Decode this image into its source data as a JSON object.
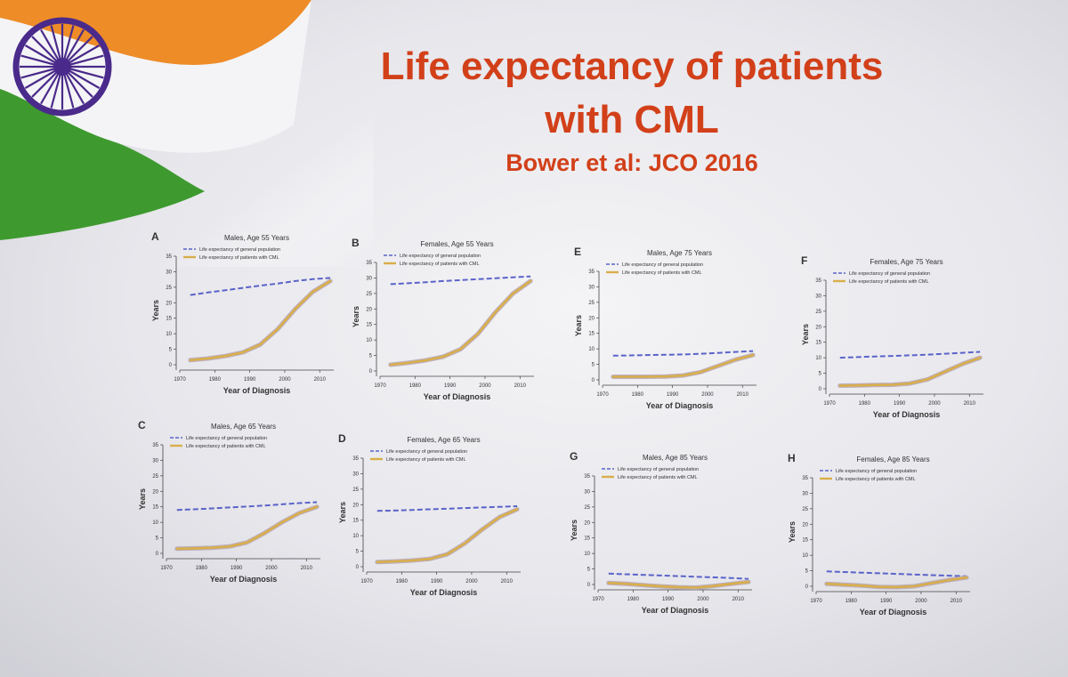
{
  "slide": {
    "title_line1": "Life expectancy of patients",
    "title_line2": "with CML",
    "subtitle": "Bower et al: JCO 2016"
  },
  "colors": {
    "title": "#d2401a",
    "general_population": "#5a63c8",
    "cml_patients": "#d9ae4a",
    "cml_band": "#b8aab8"
  },
  "chart_data": [
    {
      "type": "line",
      "panel": "A",
      "title": "Males, Age 55 Years",
      "xlabel": "Year of Diagnosis",
      "ylabel": "Years",
      "xlim": [
        1970,
        2014
      ],
      "ylim": [
        0,
        35
      ],
      "xticks": [
        1970,
        1980,
        1990,
        2000,
        2010
      ],
      "yticks": [
        0,
        5,
        10,
        15,
        20,
        25,
        30,
        35
      ],
      "x": [
        1973,
        1978,
        1983,
        1988,
        1993,
        1998,
        2003,
        2008,
        2013
      ],
      "series": [
        {
          "name": "Life expectancy of general population",
          "style": "dashed",
          "values": [
            22.5,
            23.3,
            24.0,
            24.8,
            25.5,
            26.2,
            27.0,
            27.6,
            28.0
          ]
        },
        {
          "name": "Life expectancy of patients with CML",
          "style": "solid",
          "values": [
            1.5,
            2.0,
            2.8,
            4.0,
            6.5,
            11.5,
            18.0,
            23.5,
            27.0
          ]
        }
      ],
      "legend": "top-left"
    },
    {
      "type": "line",
      "panel": "B",
      "title": "Females, Age 55 Years",
      "xlabel": "Year of Diagnosis",
      "ylabel": "Years",
      "xlim": [
        1970,
        2014
      ],
      "ylim": [
        0,
        35
      ],
      "xticks": [
        1970,
        1980,
        1990,
        2000,
        2010
      ],
      "yticks": [
        0,
        5,
        10,
        15,
        20,
        25,
        30,
        35
      ],
      "x": [
        1973,
        1978,
        1983,
        1988,
        1993,
        1998,
        2003,
        2008,
        2013
      ],
      "series": [
        {
          "name": "Life expectancy of general population",
          "style": "dashed",
          "values": [
            28.0,
            28.3,
            28.6,
            29.0,
            29.3,
            29.6,
            29.9,
            30.2,
            30.5
          ]
        },
        {
          "name": "Life expectancy of patients with CML",
          "style": "solid",
          "values": [
            2.0,
            2.6,
            3.4,
            4.6,
            7.0,
            12.0,
            19.0,
            25.0,
            29.0
          ]
        }
      ],
      "legend": "top-left"
    },
    {
      "type": "line",
      "panel": "E",
      "title": "Males, Age 75 Years",
      "xlabel": "Year of Diagnosis",
      "ylabel": "Years",
      "xlim": [
        1970,
        2014
      ],
      "ylim": [
        0,
        35
      ],
      "xticks": [
        1970,
        1980,
        1990,
        2000,
        2010
      ],
      "yticks": [
        0,
        5,
        10,
        15,
        20,
        25,
        30,
        35
      ],
      "x": [
        1973,
        1978,
        1983,
        1988,
        1993,
        1998,
        2003,
        2008,
        2013
      ],
      "series": [
        {
          "name": "Life expectancy of general population",
          "style": "dashed",
          "values": [
            7.8,
            7.9,
            8.0,
            8.1,
            8.2,
            8.4,
            8.7,
            9.0,
            9.3
          ]
        },
        {
          "name": "Life expectancy of patients with CML",
          "style": "solid",
          "values": [
            1.0,
            1.0,
            1.0,
            1.1,
            1.4,
            2.5,
            4.5,
            6.5,
            8.0
          ]
        }
      ],
      "legend": "top-left"
    },
    {
      "type": "line",
      "panel": "F",
      "title": "Females, Age 75 Years",
      "xlabel": "Year of Diagnosis",
      "ylabel": "Years",
      "xlim": [
        1970,
        2014
      ],
      "ylim": [
        0,
        35
      ],
      "xticks": [
        1970,
        1980,
        1990,
        2000,
        2010
      ],
      "yticks": [
        0,
        5,
        10,
        15,
        20,
        25,
        30,
        35
      ],
      "x": [
        1973,
        1978,
        1983,
        1988,
        1993,
        1998,
        2003,
        2008,
        2013
      ],
      "series": [
        {
          "name": "Life expectancy of general population",
          "style": "dashed",
          "values": [
            10.0,
            10.2,
            10.4,
            10.6,
            10.8,
            11.0,
            11.3,
            11.6,
            11.9
          ]
        },
        {
          "name": "Life expectancy of patients with CML",
          "style": "solid",
          "values": [
            1.0,
            1.1,
            1.2,
            1.3,
            1.7,
            3.0,
            5.5,
            8.0,
            10.0
          ]
        }
      ],
      "legend": "top-left"
    },
    {
      "type": "line",
      "panel": "C",
      "title": "Males, Age 65 Years",
      "xlabel": "Year of Diagnosis",
      "ylabel": "Years",
      "xlim": [
        1970,
        2014
      ],
      "ylim": [
        0,
        35
      ],
      "xticks": [
        1970,
        1980,
        1990,
        2000,
        2010
      ],
      "yticks": [
        0,
        5,
        10,
        15,
        20,
        25,
        30,
        35
      ],
      "x": [
        1973,
        1978,
        1983,
        1988,
        1993,
        1998,
        2003,
        2008,
        2013
      ],
      "series": [
        {
          "name": "Life expectancy of general population",
          "style": "dashed",
          "values": [
            14.0,
            14.2,
            14.5,
            14.8,
            15.1,
            15.4,
            15.8,
            16.2,
            16.5
          ]
        },
        {
          "name": "Life expectancy of patients with CML",
          "style": "solid",
          "values": [
            1.5,
            1.6,
            1.8,
            2.2,
            3.5,
            6.5,
            10.0,
            13.0,
            15.0
          ]
        }
      ],
      "legend": "top-left"
    },
    {
      "type": "line",
      "panel": "D",
      "title": "Females, Age 65 Years",
      "xlabel": "Year of Diagnosis",
      "ylabel": "Years",
      "xlim": [
        1970,
        2014
      ],
      "ylim": [
        0,
        35
      ],
      "xticks": [
        1970,
        1980,
        1990,
        2000,
        2010
      ],
      "yticks": [
        0,
        5,
        10,
        15,
        20,
        25,
        30,
        35
      ],
      "x": [
        1973,
        1978,
        1983,
        1988,
        1993,
        1998,
        2003,
        2008,
        2013
      ],
      "series": [
        {
          "name": "Life expectancy of general population",
          "style": "dashed",
          "values": [
            18.0,
            18.1,
            18.3,
            18.5,
            18.7,
            18.9,
            19.1,
            19.3,
            19.5
          ]
        },
        {
          "name": "Life expectancy of patients with CML",
          "style": "solid",
          "values": [
            1.5,
            1.7,
            2.0,
            2.5,
            4.0,
            7.5,
            12.0,
            16.0,
            18.5
          ]
        }
      ],
      "legend": "top-left"
    },
    {
      "type": "line",
      "panel": "G",
      "title": "Males, Age 85 Years",
      "xlabel": "Year of Diagnosis",
      "ylabel": "Years",
      "xlim": [
        1970,
        2014
      ],
      "ylim": [
        0,
        35
      ],
      "xticks": [
        1970,
        1980,
        1990,
        2000,
        2010
      ],
      "yticks": [
        0,
        5,
        10,
        15,
        20,
        25,
        30,
        35
      ],
      "x": [
        1973,
        1978,
        1983,
        1988,
        1993,
        1998,
        2003,
        2008,
        2013
      ],
      "series": [
        {
          "name": "Life expectancy of general population",
          "style": "dashed",
          "values": [
            3.5,
            3.3,
            3.1,
            2.9,
            2.7,
            2.5,
            2.3,
            2.1,
            1.8
          ]
        },
        {
          "name": "Life expectancy of patients with CML",
          "style": "solid",
          "values": [
            0.5,
            0.2,
            -0.2,
            -0.6,
            -0.9,
            -1.0,
            -0.5,
            0.2,
            0.8
          ]
        }
      ],
      "legend": "top-left"
    },
    {
      "type": "line",
      "panel": "H",
      "title": "Females, Age 85 Years",
      "xlabel": "Year of Diagnosis",
      "ylabel": "Years",
      "xlim": [
        1970,
        2014
      ],
      "ylim": [
        0,
        35
      ],
      "xticks": [
        1970,
        1980,
        1990,
        2000,
        2010
      ],
      "yticks": [
        0,
        5,
        10,
        15,
        20,
        25,
        30,
        35
      ],
      "x": [
        1973,
        1978,
        1983,
        1988,
        1993,
        1998,
        2003,
        2008,
        2013
      ],
      "series": [
        {
          "name": "Life expectancy of general population",
          "style": "dashed",
          "values": [
            4.8,
            4.6,
            4.4,
            4.2,
            4.0,
            3.8,
            3.6,
            3.4,
            3.2
          ]
        },
        {
          "name": "Life expectancy of patients with CML",
          "style": "solid",
          "values": [
            0.8,
            0.5,
            0.2,
            -0.2,
            -0.3,
            0.0,
            1.0,
            2.0,
            2.8
          ]
        }
      ],
      "legend": "top-left"
    }
  ]
}
